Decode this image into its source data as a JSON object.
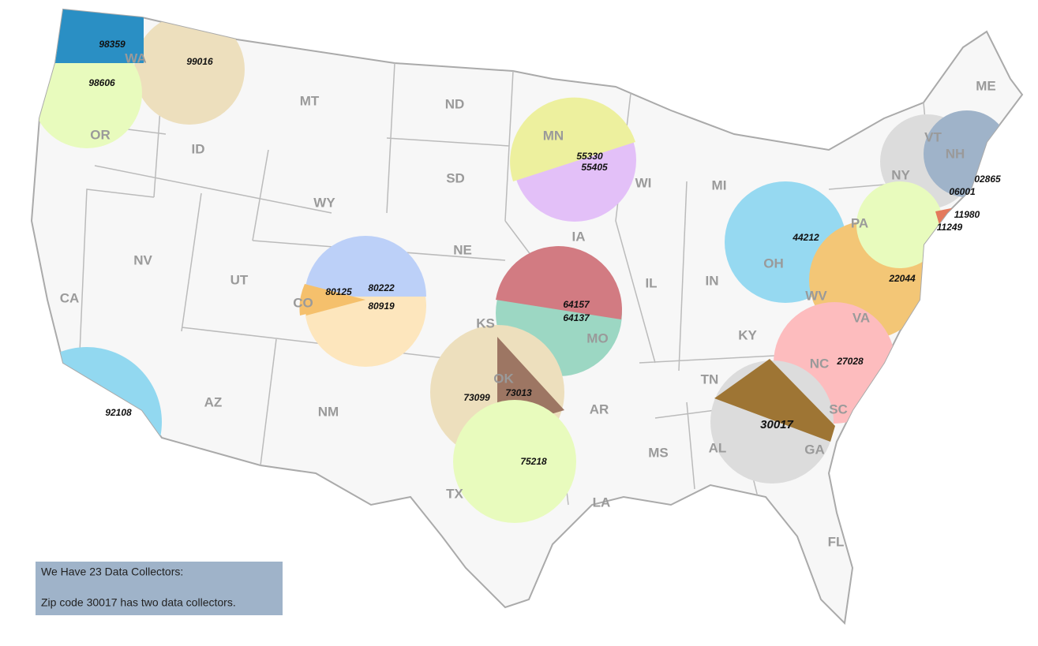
{
  "map": {
    "states": [
      "WA",
      "OR",
      "CA",
      "ID",
      "NV",
      "MT",
      "WY",
      "UT",
      "AZ",
      "CO",
      "NM",
      "ND",
      "SD",
      "NE",
      "KS",
      "OK",
      "TX",
      "MN",
      "IA",
      "MO",
      "AR",
      "LA",
      "WI",
      "IL",
      "MI",
      "IN",
      "OH",
      "KY",
      "TN",
      "MS",
      "AL",
      "GA",
      "FL",
      "SC",
      "NC",
      "VA",
      "WV",
      "PA",
      "NY",
      "VT",
      "NH",
      "ME"
    ],
    "zip_codes": [
      "98359",
      "99016",
      "98606",
      "92108",
      "80125",
      "80222",
      "80919",
      "55330",
      "55405",
      "64157",
      "64137",
      "73099",
      "73013",
      "75218",
      "30017",
      "27028",
      "22044",
      "44212",
      "06001",
      "02865",
      "11980",
      "11249"
    ],
    "note": {
      "title": "We Have 23 Data Collectors:",
      "text": "Zip code 30017 has two data collectors."
    }
  }
}
